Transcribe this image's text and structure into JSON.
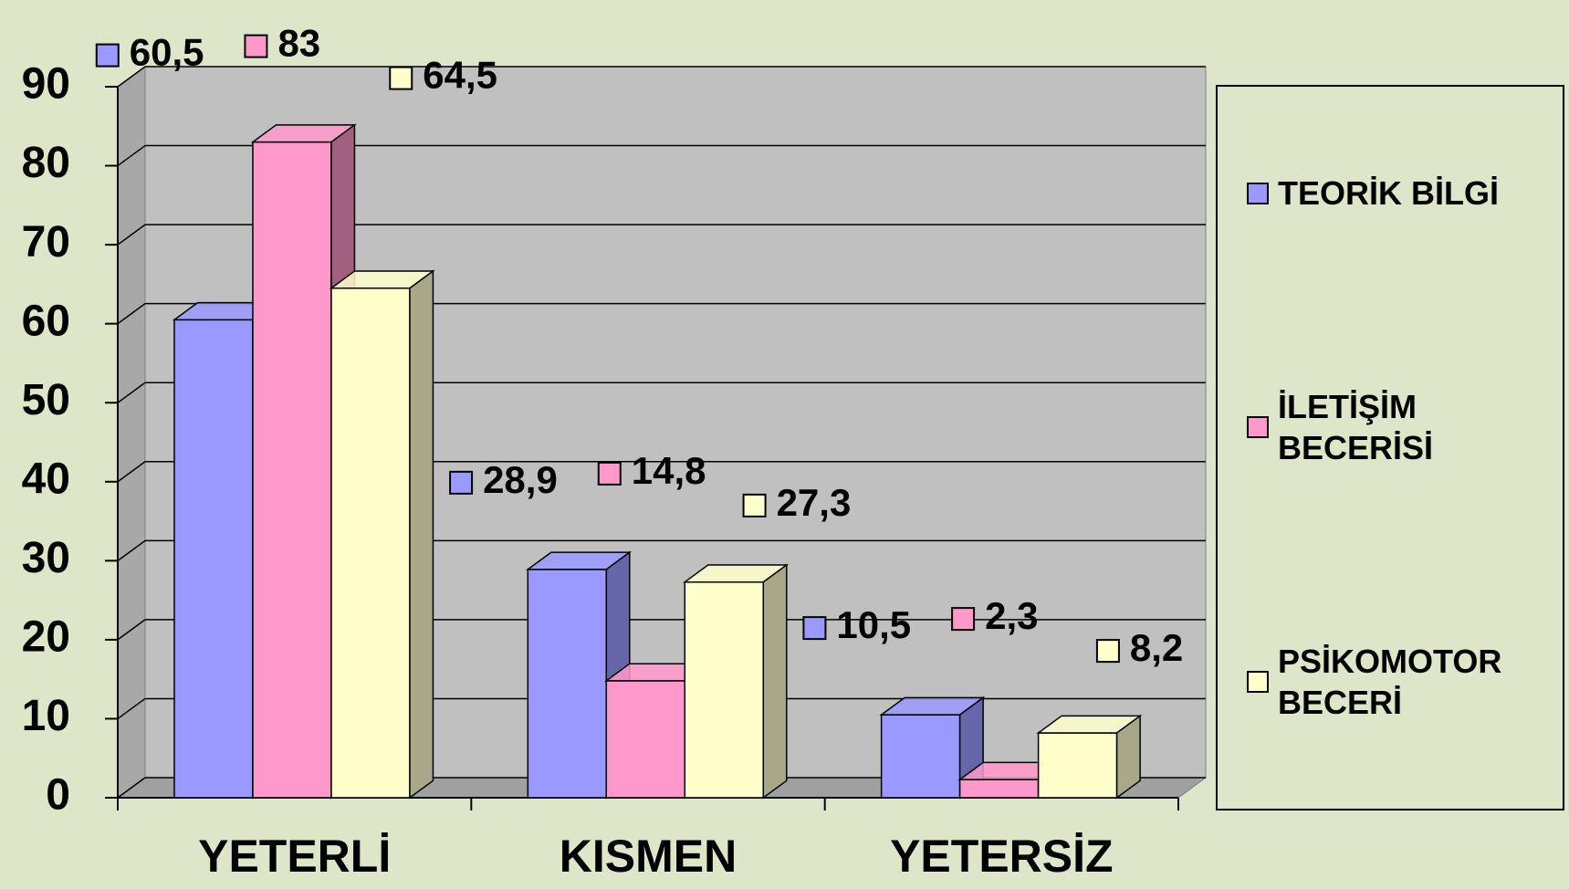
{
  "chart_data": {
    "type": "bar3d",
    "categories": [
      "YETERLİ",
      "KISMEN",
      "YETERSİZ"
    ],
    "series": [
      {
        "name": "TEORİK BİLGİ",
        "color": "#9999ff",
        "side_color": "#6666aa",
        "values": [
          60.5,
          28.9,
          10.5
        ],
        "value_labels": [
          "60,5",
          "28,9",
          "10,5"
        ]
      },
      {
        "name": "İLETİŞİM BECERİSİ",
        "color": "#ff99cc",
        "side_color": "#a0607e",
        "values": [
          83,
          14.8,
          2.3
        ],
        "value_labels": [
          "83",
          "14,8",
          "2,3"
        ]
      },
      {
        "name": "PSİKOMOTOR BECERİ",
        "color": "#ffffcc",
        "side_color": "#a8a888",
        "values": [
          64.5,
          27.3,
          8.2
        ],
        "value_labels": [
          "64,5",
          "27,3",
          "8,2"
        ]
      }
    ],
    "ylim": [
      0,
      90
    ],
    "yticks": [
      0,
      10,
      20,
      30,
      40,
      50,
      60,
      70,
      80,
      90
    ],
    "grid": true,
    "legend": "right"
  }
}
